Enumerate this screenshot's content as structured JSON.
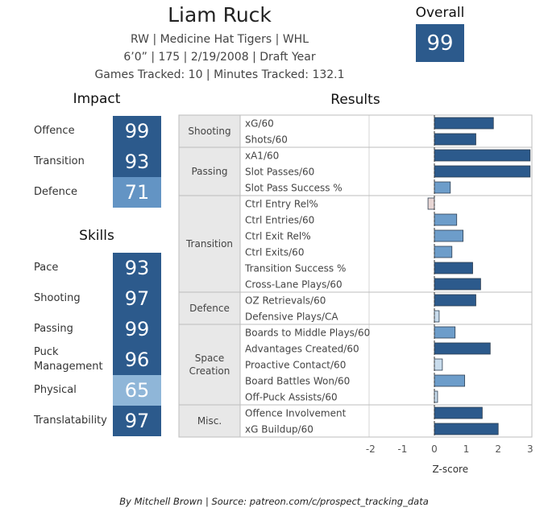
{
  "player": {
    "name": "Liam Ruck",
    "info_line_1": "RW | Medicine Hat Tigers | WHL",
    "info_line_2": "6’0” | 175 | 2/19/2008 |  Draft Year",
    "info_line_3": "Games Tracked: 10 | Minutes Tracked: 132.1"
  },
  "overall": {
    "label": "Overall",
    "value": "99",
    "color": "#2c5a8c"
  },
  "impact": {
    "title": "Impact",
    "items": [
      {
        "label": "Offence",
        "value": "99",
        "color": "#2c5a8c"
      },
      {
        "label": "Transition",
        "value": "93",
        "color": "#2c5a8c"
      },
      {
        "label": "Defence",
        "value": "71",
        "color": "#6394c4"
      }
    ]
  },
  "skills": {
    "title": "Skills",
    "items": [
      {
        "label": "Pace",
        "value": "93",
        "color": "#2c5a8c"
      },
      {
        "label": "Shooting",
        "value": "97",
        "color": "#2c5a8c"
      },
      {
        "label": "Passing",
        "value": "99",
        "color": "#2c5a8c"
      },
      {
        "label": "Puck\nManagement",
        "value": "96",
        "color": "#2c5a8c"
      },
      {
        "label": "Physical",
        "value": "65",
        "color": "#8fb6d8"
      },
      {
        "label": "Translatability",
        "value": "97",
        "color": "#2c5a8c"
      }
    ]
  },
  "chart_data": {
    "type": "bar",
    "orientation": "horizontal",
    "title": "Results",
    "xlabel": "Z-score",
    "xlim": [
      -2,
      3
    ],
    "xticks": [
      -2,
      -1,
      0,
      1,
      2,
      3
    ],
    "xtick_labels": [
      "-2",
      "-1",
      "0",
      "1",
      "2",
      "3"
    ],
    "zero_line": true,
    "groups": [
      {
        "name": "Shooting",
        "metrics": [
          {
            "label": "xG/60",
            "value": 1.85
          },
          {
            "label": "Shots/60",
            "value": 1.3
          }
        ]
      },
      {
        "name": "Passing",
        "metrics": [
          {
            "label": "xA1/60",
            "value": 3.0
          },
          {
            "label": "Slot Passes/60",
            "value": 3.0
          },
          {
            "label": "Slot Pass Success %",
            "value": 0.5
          }
        ]
      },
      {
        "name": "Transition",
        "metrics": [
          {
            "label": "Ctrl Entry Rel%",
            "value": -0.2
          },
          {
            "label": "Ctrl Entries/60",
            "value": 0.7
          },
          {
            "label": "Ctrl Exit Rel%",
            "value": 0.9
          },
          {
            "label": "Ctrl Exits/60",
            "value": 0.55
          },
          {
            "label": "Transition Success %",
            "value": 1.2
          },
          {
            "label": "Cross-Lane Plays/60",
            "value": 1.45
          }
        ]
      },
      {
        "name": "Defence",
        "metrics": [
          {
            "label": "OZ Retrievals/60",
            "value": 1.3
          },
          {
            "label": "Defensive Plays/CA",
            "value": 0.15
          }
        ]
      },
      {
        "name": "Space\nCreation",
        "metrics": [
          {
            "label": "Boards to Middle Plays/60",
            "value": 0.65
          },
          {
            "label": "Advantages Created/60",
            "value": 1.75
          },
          {
            "label": "Proactive Contact/60",
            "value": 0.25
          },
          {
            "label": "Board Battles Won/60",
            "value": 0.95
          },
          {
            "label": "Off-Puck Assists/60",
            "value": 0.1
          }
        ]
      },
      {
        "name": "Misc.",
        "metrics": [
          {
            "label": "Offence Involvement",
            "value": 1.5
          },
          {
            "label": "xG Buildup/60",
            "value": 2.0
          }
        ]
      }
    ],
    "color_scale": {
      "negative": "#e8d6d4",
      "low": "#c9dcec",
      "mid": "#6d9dca",
      "high": "#2c5a8c"
    }
  },
  "footer": "By Mitchell Brown | Source: patreon.com/c/prospect_tracking_data"
}
